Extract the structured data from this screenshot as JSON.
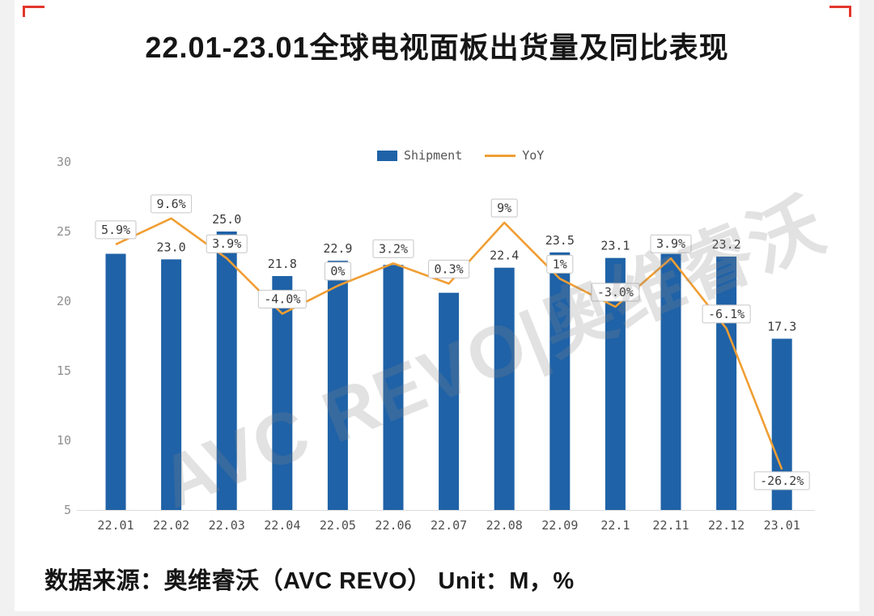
{
  "page": {
    "title": "22.01-23.01全球电视面板出货量及同比表现",
    "source_line": "数据来源：奥维睿沃（AVC REVO）  Unit：M，%",
    "watermark": "AVC REVO|奥维睿沃"
  },
  "legend": {
    "shipment": "Shipment",
    "yoy": "YoY"
  },
  "chart_data": {
    "type": "bar",
    "title": "22.01-23.01全球电视面板出货量及同比表现",
    "unit": "M, %",
    "categories": [
      "22.01",
      "22.02",
      "22.03",
      "22.04",
      "22.05",
      "22.06",
      "22.07",
      "22.08",
      "22.09",
      "22.1",
      "22.11",
      "22.12",
      "23.01"
    ],
    "series": [
      {
        "name": "Shipment",
        "type": "bar",
        "unit": "M",
        "values": [
          23.4,
          23.0,
          25.0,
          21.8,
          22.9,
          22.6,
          20.6,
          22.4,
          23.5,
          23.1,
          23.4,
          23.2,
          17.3
        ],
        "labels": [
          "",
          "23.0",
          "25.0",
          "21.8",
          "22.9",
          "",
          "",
          "22.4",
          "23.5",
          "23.1",
          "",
          "23.2",
          "17.3"
        ]
      },
      {
        "name": "YoY",
        "type": "line",
        "unit": "%",
        "values": [
          5.9,
          9.6,
          3.9,
          -4.0,
          0,
          3.2,
          0.3,
          9,
          1,
          -3.0,
          3.9,
          -6.1,
          -26.2
        ],
        "labels": [
          "5.9%",
          "9.6%",
          "3.9%",
          "-4.0%",
          "0%",
          "3.2%",
          "0.3%",
          "9%",
          "1%",
          "-3.0%",
          "3.9%",
          "-6.1%",
          "-26.2%"
        ],
        "label_pos": [
          "above",
          "above",
          "above",
          "above",
          "above",
          "above",
          "above",
          "above",
          "above",
          "above",
          "above",
          "above",
          "below"
        ]
      }
    ],
    "y_axis": {
      "min": 5,
      "max": 30,
      "ticks": [
        30,
        25,
        20,
        15,
        10,
        5
      ]
    },
    "legend_position": "top",
    "grid": false,
    "colors": {
      "bar": "#1f62a7",
      "line": "#f09e33"
    }
  }
}
